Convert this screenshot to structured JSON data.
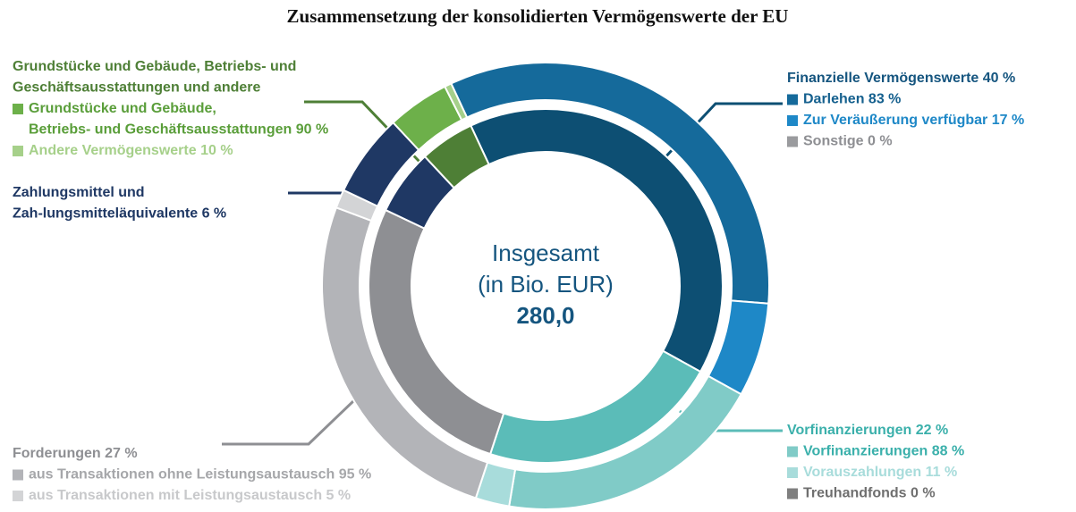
{
  "chart_data": {
    "type": "nested-donut",
    "title": "Zusammensetzung der konsolidierten Vermögenswerte der EU",
    "center_lines": [
      "Insgesamt",
      "(in Bio. EUR)"
    ],
    "total": "280,0",
    "groups": [
      {
        "label_lines": [
          "Finanzielle Vermögenswerte 40 %"
        ],
        "value": 40,
        "color": "#0d4f73",
        "text_color": "#15557f",
        "items": [
          {
            "label_lines": [
              "Darlehen 83 %"
            ],
            "value": 83,
            "color": "#156a9b",
            "text_color": "#15608e"
          },
          {
            "label_lines": [
              "Zur Veräußerung verfügbar 17 %"
            ],
            "value": 17,
            "color": "#1e88c7",
            "text_color": "#1e88c7"
          },
          {
            "label_lines": [
              "Sonstige 0 %"
            ],
            "value": 0,
            "color": "#9a9b9e",
            "text_color": "#8e8f93"
          }
        ]
      },
      {
        "label_lines": [
          "Vorfinanzierungen 22 %"
        ],
        "value": 22,
        "color": "#5bbcb8",
        "text_color": "#3bb0ab",
        "items": [
          {
            "label_lines": [
              "Vorfinanzierungen 88 %"
            ],
            "value": 88,
            "color": "#80cbc7",
            "text_color": "#3bb0ab"
          },
          {
            "label_lines": [
              "Vorauszahlungen 11 %"
            ],
            "value": 11,
            "color": "#a8dcdb",
            "text_color": "#a8dcdb"
          },
          {
            "label_lines": [
              "Treuhandfonds 0 %"
            ],
            "value": 0,
            "color": "#7f7f7f",
            "text_color": "#6f6f6f"
          }
        ]
      },
      {
        "label_lines": [
          "Forderungen 27 %"
        ],
        "value": 27,
        "color": "#8e8f93",
        "text_color": "#8e8f93",
        "items": [
          {
            "label_lines": [
              "aus Transaktionen ohne Leistungsaustausch 95 %"
            ],
            "value": 95,
            "color": "#b3b4b8",
            "text_color": "#a6a7aa"
          },
          {
            "label_lines": [
              "aus Transaktionen mit Leistungsaustausch 5 %"
            ],
            "value": 5,
            "color": "#d3d4d6",
            "text_color": "#c8c9cb"
          }
        ]
      },
      {
        "label_lines": [
          "Zahlungsmittel und",
          "Zah-lungsmitteläquivalente 6 %"
        ],
        "value": 6,
        "color": "#1f3864",
        "text_color": "#1f3864",
        "items": []
      },
      {
        "label_lines": [
          "Grundstücke und Gebäude, Betriebs- und",
          "Geschäftsausstattungen und andere"
        ],
        "value": 5,
        "color": "#4e7f36",
        "text_color": "#4e7f36",
        "items": [
          {
            "label_lines": [
              "Grundstücke und Gebäude,",
              "Betriebs- und Geschäftsausstattungen 90 %"
            ],
            "value": 90,
            "color": "#6db04a",
            "text_color": "#5a9e3a"
          },
          {
            "label_lines": [
              "Andere Vermögenswerte 10 %"
            ],
            "value": 10,
            "color": "#a6d08a",
            "text_color": "#a6d08a"
          }
        ]
      }
    ]
  }
}
